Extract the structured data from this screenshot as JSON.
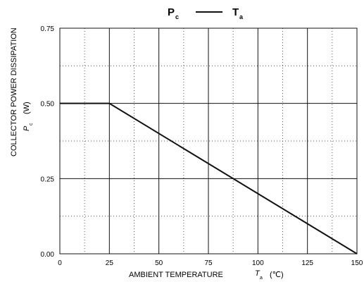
{
  "chart_data": {
    "type": "line",
    "title": {
      "main1": "P",
      "sub1": "c",
      "dash": "——",
      "main2": "T",
      "sub2": "a"
    },
    "xlabel": {
      "text": "AMBIENT TEMPERATURE",
      "sym": "T",
      "sub": "a",
      "unit": "(℃)"
    },
    "ylabel": {
      "line1": "COLLECTOR POWER DISSIPATION",
      "sym": "P",
      "sub": "c",
      "unit": "(W)"
    },
    "xlim": [
      0,
      150
    ],
    "ylim": [
      0,
      0.75
    ],
    "xticks": [
      0,
      25,
      50,
      75,
      100,
      125,
      150
    ],
    "xtick_labels": [
      "0",
      "25",
      "50",
      "75",
      "100",
      "125",
      "150"
    ],
    "yticks": [
      0,
      0.25,
      0.5,
      0.75
    ],
    "ytick_labels": [
      "0.00",
      "0.25",
      "0.50",
      "0.75"
    ],
    "x_minor_grid": [
      12.5,
      37.5,
      62.5,
      87.5,
      112.5,
      137.5
    ],
    "y_minor_grid": [
      0.125,
      0.375,
      0.625
    ],
    "grid": true,
    "series": [
      {
        "x": [
          0,
          25,
          150
        ],
        "y": [
          0.5,
          0.5,
          0
        ]
      }
    ]
  }
}
